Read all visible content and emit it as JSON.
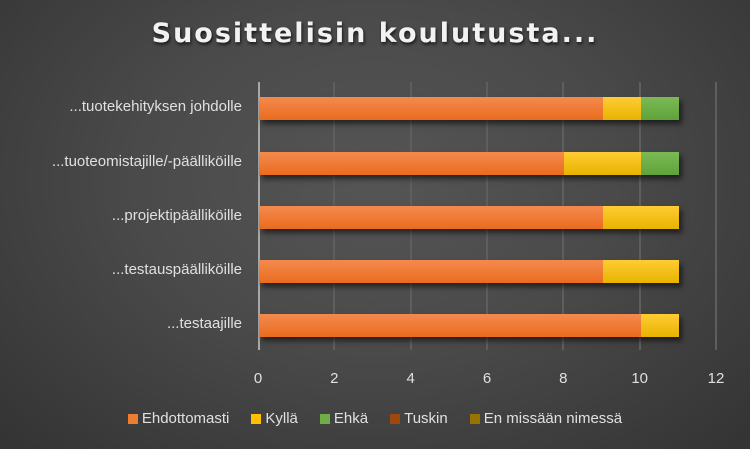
{
  "chart_data": {
    "type": "bar",
    "orientation": "horizontal",
    "stacked": true,
    "title": "Suosittelisin koulutusta...",
    "xlabel": "",
    "ylabel": "",
    "xlim": [
      0,
      12
    ],
    "x_ticks": [
      "0",
      "2",
      "4",
      "6",
      "8",
      "10",
      "12"
    ],
    "grid": true,
    "legend_position": "bottom",
    "categories": [
      "...tuotekehityksen johdolle",
      "...tuoteomistajille/-päälliköille",
      "...projektipäälliköille",
      "...testauspäälliköille",
      "...testaajille"
    ],
    "series": [
      {
        "name": "Ehdottomasti",
        "color": "#ED7D31",
        "values": [
          9,
          8,
          9,
          9,
          10
        ]
      },
      {
        "name": "Kyllä",
        "color": "#FFC000",
        "values": [
          1,
          2,
          2,
          2,
          1
        ]
      },
      {
        "name": "Ehkä",
        "color": "#70AD47",
        "values": [
          1,
          1,
          0,
          0,
          0
        ]
      },
      {
        "name": "Tuskin",
        "color": "#9E480E",
        "values": [
          0,
          0,
          0,
          0,
          0
        ]
      },
      {
        "name": "En missään nimessä",
        "color": "#997300",
        "values": [
          0,
          0,
          0,
          0,
          0
        ]
      }
    ]
  }
}
